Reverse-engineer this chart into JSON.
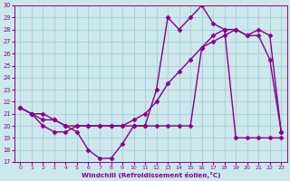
{
  "background_color": "#cce8ec",
  "line_color": "#880088",
  "marker": "D",
  "markersize": 2.5,
  "linewidth": 1.0,
  "xlabel": "Windchill (Refroidissement éolien,°C)",
  "xlim": [
    -0.5,
    23.5
  ],
  "ylim": [
    17,
    30
  ],
  "yticks": [
    17,
    18,
    19,
    20,
    21,
    22,
    23,
    24,
    25,
    26,
    27,
    28,
    29,
    30
  ],
  "xticks": [
    0,
    1,
    2,
    3,
    4,
    5,
    6,
    7,
    8,
    9,
    10,
    11,
    12,
    13,
    14,
    15,
    16,
    17,
    18,
    19,
    20,
    21,
    22,
    23
  ],
  "grid_color": "#aaccd4",
  "curve1_x": [
    0,
    1,
    2,
    3,
    4,
    5,
    6,
    7,
    8,
    9,
    10,
    11,
    12,
    13,
    14,
    15,
    16,
    17,
    18,
    19,
    20,
    21,
    22,
    23
  ],
  "curve1_y": [
    21.5,
    21.0,
    21.0,
    20.5,
    20.0,
    19.5,
    18.0,
    17.3,
    17.3,
    18.5,
    20.0,
    20.0,
    23.0,
    29.0,
    28.0,
    29.0,
    30.0,
    28.5,
    28.0,
    19.0,
    19.0,
    19.0,
    19.0,
    19.0
  ],
  "curve2_x": [
    0,
    1,
    2,
    3,
    4,
    5,
    6,
    7,
    8,
    9,
    10,
    11,
    12,
    13,
    14,
    15,
    16,
    17,
    18,
    19,
    20,
    21,
    22,
    23
  ],
  "curve2_y": [
    21.5,
    21.0,
    20.5,
    20.5,
    20.0,
    20.0,
    20.0,
    20.0,
    20.0,
    20.0,
    20.5,
    21.0,
    22.0,
    23.5,
    24.5,
    25.5,
    26.5,
    27.5,
    28.0,
    28.0,
    27.5,
    27.5,
    25.5,
    19.5
  ],
  "curve3_x": [
    0,
    1,
    2,
    3,
    4,
    5,
    6,
    7,
    8,
    9,
    10,
    11,
    12,
    13,
    14,
    15,
    16,
    17,
    18,
    19,
    20,
    21,
    22,
    23
  ],
  "curve3_y": [
    21.5,
    21.0,
    20.0,
    19.5,
    19.5,
    20.0,
    20.0,
    20.0,
    20.0,
    20.0,
    20.0,
    20.0,
    20.0,
    20.0,
    20.0,
    20.0,
    26.5,
    27.0,
    27.5,
    28.0,
    27.5,
    28.0,
    27.5,
    19.5
  ]
}
